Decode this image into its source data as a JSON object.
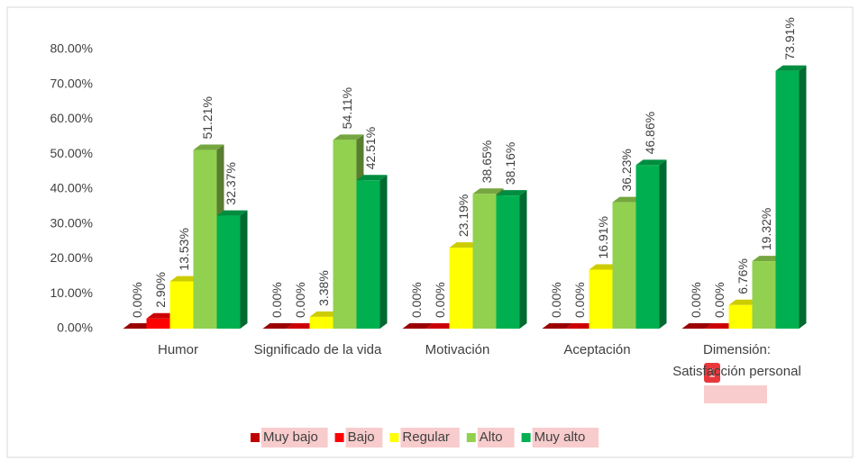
{
  "chart_data": {
    "type": "bar3d",
    "categories": [
      "Humor",
      "Significado de la vida",
      "Motivación",
      "Aceptación",
      "Dimensión: Satisfacción personal"
    ],
    "series": [
      {
        "name": "Muy bajo",
        "color": "#c00000",
        "values": [
          0,
          0,
          0,
          0,
          0
        ],
        "value_labels": [
          "0.00%",
          "0.00%",
          "0.00%",
          "0.00%",
          "0.00%"
        ]
      },
      {
        "name": "Bajo",
        "color": "#ff0000",
        "values": [
          2.9,
          0,
          0,
          0,
          0
        ],
        "value_labels": [
          "2.90%",
          "0.00%",
          "0.00%",
          "0.00%",
          "0.00%"
        ]
      },
      {
        "name": "Regular",
        "color": "#ffff00",
        "values": [
          13.53,
          3.38,
          23.19,
          16.91,
          6.76
        ],
        "value_labels": [
          "13.53%",
          "3.38%",
          "23.19%",
          "16.91%",
          "6.76%"
        ]
      },
      {
        "name": "Alto",
        "color": "#92d050",
        "values": [
          51.21,
          54.11,
          38.65,
          36.23,
          19.32
        ],
        "value_labels": [
          "51.21%",
          "54.11%",
          "38.65%",
          "36.23%",
          "19.32%"
        ]
      },
      {
        "name": "Muy alto",
        "color": "#00b050",
        "values": [
          32.37,
          42.51,
          38.16,
          46.86,
          73.91
        ],
        "value_labels": [
          "32.37%",
          "42.51%",
          "38.16%",
          "46.86%",
          "73.91%"
        ]
      }
    ],
    "ylim": [
      0,
      80
    ],
    "yticks": [
      {
        "value": 0,
        "label": "0.00%"
      },
      {
        "value": 10,
        "label": "10.00%"
      },
      {
        "value": 20,
        "label": "20.00%"
      },
      {
        "value": 30,
        "label": "30.00%"
      },
      {
        "value": 40,
        "label": "40.00%"
      },
      {
        "value": 50,
        "label": "50.00%"
      },
      {
        "value": 60,
        "label": "60.00%"
      },
      {
        "value": 70,
        "label": "70.00%"
      },
      {
        "value": 80,
        "label": "80.00%"
      }
    ],
    "legend": "bottom",
    "annotations": [
      "1"
    ]
  }
}
